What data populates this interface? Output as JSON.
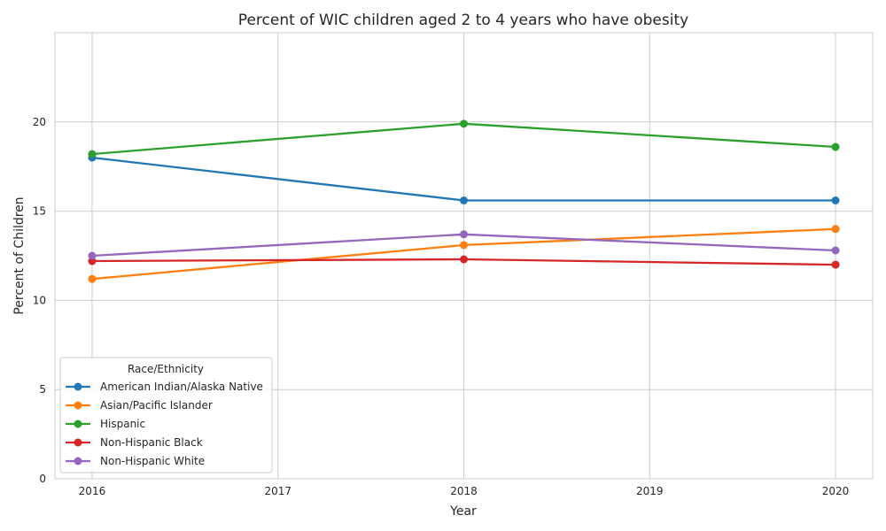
{
  "chart_data": {
    "type": "line",
    "title": "Percent of WIC children aged 2 to 4 years who have obesity",
    "xlabel": "Year",
    "ylabel": "Percent of Children",
    "x": [
      2016,
      2018,
      2020
    ],
    "x_ticks": [
      "2016",
      "2017",
      "2018",
      "2019",
      "2020"
    ],
    "x_tick_values": [
      2016,
      2017,
      2018,
      2019,
      2020
    ],
    "xlim": [
      2015.8,
      2020.2
    ],
    "y_ticks": [
      "0",
      "5",
      "10",
      "15",
      "20"
    ],
    "y_tick_values": [
      0,
      5,
      10,
      15,
      20
    ],
    "ylim": [
      0,
      25
    ],
    "grid": true,
    "legend": {
      "title": "Race/Ethnicity",
      "placement": "lower-left"
    },
    "series": [
      {
        "name": "American Indian/Alaska Native",
        "color": "#1f77b4",
        "values": [
          18.0,
          15.6,
          15.6
        ]
      },
      {
        "name": "Asian/Pacific Islander",
        "color": "#ff7f0e",
        "values": [
          11.2,
          13.1,
          14.0
        ]
      },
      {
        "name": "Hispanic",
        "color": "#2ca02c",
        "values": [
          18.2,
          19.9,
          18.6
        ]
      },
      {
        "name": "Non-Hispanic Black",
        "color": "#d62728",
        "values": [
          12.2,
          12.3,
          12.0
        ]
      },
      {
        "name": "Non-Hispanic White",
        "color": "#9467bd",
        "values": [
          12.5,
          13.7,
          12.8
        ]
      }
    ]
  }
}
